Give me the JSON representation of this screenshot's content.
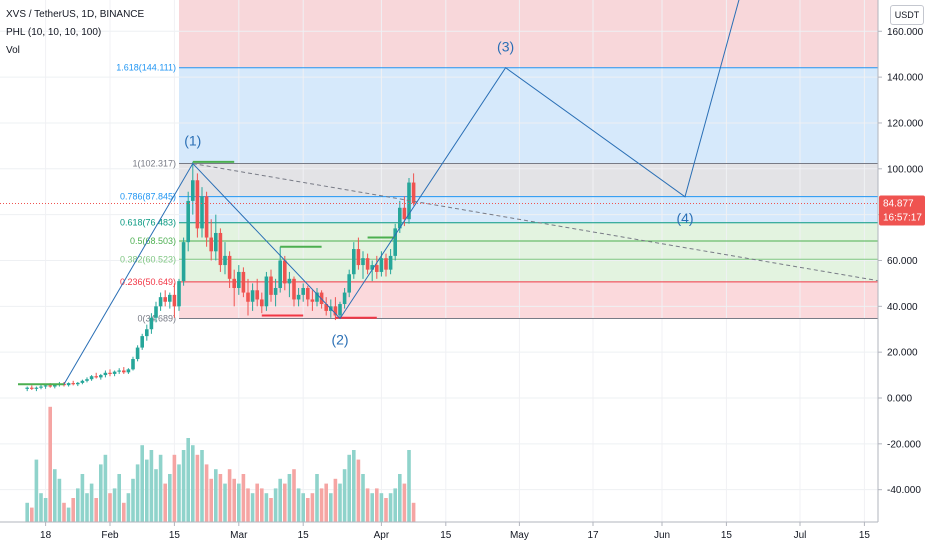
{
  "header": {
    "symbol_line": "XVS / TetherUS, 1D, BINANCE",
    "indicator_line": "PHL (10, 10, 10, 100)",
    "volume_label": "Vol"
  },
  "price_axis": {
    "currency": "USDT",
    "ticks": [
      "160.000",
      "140.000",
      "120.000",
      "100.000",
      "80.000",
      "60.000",
      "40.000",
      "20.000",
      "0.000",
      "-20.000",
      "-40.000"
    ],
    "tick_values": [
      160,
      140,
      120,
      100,
      80,
      60,
      40,
      20,
      0,
      -20,
      -40
    ],
    "current_price": "84.877",
    "countdown": "16:57:17",
    "current_value": 84.877
  },
  "time_axis": {
    "ticks": [
      "18",
      "Feb",
      "15",
      "Mar",
      "15",
      "Apr",
      "15",
      "May",
      "17",
      "Jun",
      "15",
      "Jul",
      "15"
    ],
    "tick_days": [
      -14,
      0,
      14,
      28,
      42,
      59,
      73,
      89,
      105,
      120,
      134,
      150,
      164
    ]
  },
  "fib_levels": [
    {
      "label": "1.618(144.111)",
      "value": 144.111,
      "color": "#2196f3"
    },
    {
      "label": "1(102.317)",
      "value": 102.317,
      "color": "#787b86"
    },
    {
      "label": "0.786(87.845)",
      "value": 87.845,
      "color": "#2196f3"
    },
    {
      "label": "0.618(76.483)",
      "value": 76.483,
      "color": "#089981"
    },
    {
      "label": "0.5(68.503)",
      "value": 68.503,
      "color": "#4caf50"
    },
    {
      "label": "0.382(60.523)",
      "value": 60.523,
      "color": "#81c784"
    },
    {
      "label": "0.236(50.649)",
      "value": 50.649,
      "color": "#f23645"
    },
    {
      "label": "0(34.689)",
      "value": 34.689,
      "color": "#787b86"
    }
  ],
  "wave_labels": [
    "(1)",
    "(2)",
    "(3)",
    "(4)"
  ],
  "chart_data": {
    "type": "candlestick",
    "symbol": "XVS / TetherUS",
    "interval": "1D",
    "exchange": "BINANCE",
    "ylim": [
      -55,
      183
    ],
    "candles": [
      {
        "day": -18,
        "o": 4,
        "h": 5,
        "l": 3,
        "c": 4.5
      },
      {
        "day": -17,
        "o": 4.5,
        "h": 5.5,
        "l": 3.5,
        "c": 4
      },
      {
        "day": -16,
        "o": 4,
        "h": 5,
        "l": 3,
        "c": 4.5
      },
      {
        "day": -15,
        "o": 4.5,
        "h": 6,
        "l": 3.8,
        "c": 5
      },
      {
        "day": -14,
        "o": 5,
        "h": 6,
        "l": 4,
        "c": 5.5
      },
      {
        "day": -13,
        "o": 5.5,
        "h": 6.5,
        "l": 4.5,
        "c": 5
      },
      {
        "day": -12,
        "o": 5,
        "h": 6,
        "l": 4.2,
        "c": 5.8
      },
      {
        "day": -11,
        "o": 5.8,
        "h": 7,
        "l": 5,
        "c": 6.2
      },
      {
        "day": -10,
        "o": 6.2,
        "h": 7,
        "l": 5,
        "c": 5.6
      },
      {
        "day": -9,
        "o": 5.6,
        "h": 6.8,
        "l": 5,
        "c": 6.5
      },
      {
        "day": -8,
        "o": 6.5,
        "h": 7.5,
        "l": 5.5,
        "c": 6
      },
      {
        "day": -7,
        "o": 6,
        "h": 7,
        "l": 5.2,
        "c": 6.6
      },
      {
        "day": -6,
        "o": 6.6,
        "h": 8,
        "l": 6,
        "c": 7.5
      },
      {
        "day": -5,
        "o": 7.5,
        "h": 9,
        "l": 6.8,
        "c": 8.2
      },
      {
        "day": -4,
        "o": 8.2,
        "h": 10,
        "l": 7.5,
        "c": 9.5
      },
      {
        "day": -3,
        "o": 9.5,
        "h": 11,
        "l": 8.5,
        "c": 9
      },
      {
        "day": -2,
        "o": 9,
        "h": 10.5,
        "l": 8,
        "c": 10
      },
      {
        "day": -1,
        "o": 10,
        "h": 12,
        "l": 9,
        "c": 11
      },
      {
        "day": 0,
        "o": 11,
        "h": 12.5,
        "l": 9.5,
        "c": 10.5
      },
      {
        "day": 1,
        "o": 10.5,
        "h": 12,
        "l": 9.5,
        "c": 11.5
      },
      {
        "day": 2,
        "o": 11.5,
        "h": 13,
        "l": 10.5,
        "c": 12
      },
      {
        "day": 3,
        "o": 12,
        "h": 13.5,
        "l": 10.5,
        "c": 11.2
      },
      {
        "day": 4,
        "o": 11.2,
        "h": 13,
        "l": 10.5,
        "c": 12.5
      },
      {
        "day": 5,
        "o": 12.5,
        "h": 18,
        "l": 12,
        "c": 17
      },
      {
        "day": 6,
        "o": 17,
        "h": 23,
        "l": 16,
        "c": 22
      },
      {
        "day": 7,
        "o": 22,
        "h": 28,
        "l": 21,
        "c": 27
      },
      {
        "day": 8,
        "o": 27,
        "h": 32,
        "l": 25,
        "c": 30
      },
      {
        "day": 9,
        "o": 30,
        "h": 37,
        "l": 28,
        "c": 35
      },
      {
        "day": 10,
        "o": 35,
        "h": 42,
        "l": 33,
        "c": 40
      },
      {
        "day": 11,
        "o": 40,
        "h": 46,
        "l": 38,
        "c": 44
      },
      {
        "day": 12,
        "o": 44,
        "h": 47,
        "l": 40,
        "c": 42
      },
      {
        "day": 13,
        "o": 42,
        "h": 46,
        "l": 39,
        "c": 45
      },
      {
        "day": 14,
        "o": 45,
        "h": 50,
        "l": 35,
        "c": 40
      },
      {
        "day": 15,
        "o": 40,
        "h": 52,
        "l": 38,
        "c": 51
      },
      {
        "day": 16,
        "o": 51,
        "h": 70,
        "l": 49,
        "c": 68
      },
      {
        "day": 17,
        "o": 68,
        "h": 90,
        "l": 64,
        "c": 86
      },
      {
        "day": 18,
        "o": 86,
        "h": 103,
        "l": 80,
        "c": 95
      },
      {
        "day": 19,
        "o": 95,
        "h": 98,
        "l": 70,
        "c": 74
      },
      {
        "day": 20,
        "o": 74,
        "h": 92,
        "l": 70,
        "c": 88
      },
      {
        "day": 21,
        "o": 88,
        "h": 90,
        "l": 66,
        "c": 70
      },
      {
        "day": 22,
        "o": 70,
        "h": 78,
        "l": 60,
        "c": 64
      },
      {
        "day": 23,
        "o": 64,
        "h": 80,
        "l": 60,
        "c": 72
      },
      {
        "day": 24,
        "o": 72,
        "h": 74,
        "l": 55,
        "c": 58
      },
      {
        "day": 25,
        "o": 58,
        "h": 68,
        "l": 54,
        "c": 62
      },
      {
        "day": 26,
        "o": 62,
        "h": 64,
        "l": 48,
        "c": 52
      },
      {
        "day": 27,
        "o": 52,
        "h": 56,
        "l": 40,
        "c": 48
      },
      {
        "day": 28,
        "o": 48,
        "h": 58,
        "l": 45,
        "c": 55
      },
      {
        "day": 29,
        "o": 55,
        "h": 57,
        "l": 44,
        "c": 46
      },
      {
        "day": 30,
        "o": 46,
        "h": 52,
        "l": 36,
        "c": 42
      },
      {
        "day": 31,
        "o": 42,
        "h": 50,
        "l": 38,
        "c": 47
      },
      {
        "day": 32,
        "o": 47,
        "h": 52,
        "l": 40,
        "c": 43
      },
      {
        "day": 33,
        "o": 43,
        "h": 46,
        "l": 37,
        "c": 40
      },
      {
        "day": 34,
        "o": 40,
        "h": 55,
        "l": 38,
        "c": 53
      },
      {
        "day": 35,
        "o": 53,
        "h": 56,
        "l": 42,
        "c": 45
      },
      {
        "day": 36,
        "o": 45,
        "h": 52,
        "l": 40,
        "c": 48
      },
      {
        "day": 37,
        "o": 48,
        "h": 66,
        "l": 46,
        "c": 60
      },
      {
        "day": 38,
        "o": 60,
        "h": 62,
        "l": 47,
        "c": 50
      },
      {
        "day": 39,
        "o": 50,
        "h": 55,
        "l": 44,
        "c": 52
      },
      {
        "day": 40,
        "o": 52,
        "h": 53,
        "l": 40,
        "c": 43
      },
      {
        "day": 41,
        "o": 43,
        "h": 48,
        "l": 40,
        "c": 45
      },
      {
        "day": 42,
        "o": 45,
        "h": 50,
        "l": 42,
        "c": 48
      },
      {
        "day": 43,
        "o": 48,
        "h": 49,
        "l": 40,
        "c": 43
      },
      {
        "day": 44,
        "o": 43,
        "h": 47,
        "l": 38,
        "c": 42
      },
      {
        "day": 45,
        "o": 42,
        "h": 48,
        "l": 40,
        "c": 46
      },
      {
        "day": 46,
        "o": 46,
        "h": 47,
        "l": 39,
        "c": 41
      },
      {
        "day": 47,
        "o": 41,
        "h": 44,
        "l": 36,
        "c": 38
      },
      {
        "day": 48,
        "o": 38,
        "h": 43,
        "l": 35,
        "c": 40
      },
      {
        "day": 49,
        "o": 40,
        "h": 44,
        "l": 34,
        "c": 36
      },
      {
        "day": 50,
        "o": 36,
        "h": 42,
        "l": 35,
        "c": 41
      },
      {
        "day": 51,
        "o": 41,
        "h": 48,
        "l": 39,
        "c": 46
      },
      {
        "day": 52,
        "o": 46,
        "h": 56,
        "l": 44,
        "c": 54
      },
      {
        "day": 53,
        "o": 54,
        "h": 68,
        "l": 52,
        "c": 65
      },
      {
        "day": 54,
        "o": 65,
        "h": 70,
        "l": 56,
        "c": 58
      },
      {
        "day": 55,
        "o": 58,
        "h": 64,
        "l": 52,
        "c": 61
      },
      {
        "day": 56,
        "o": 61,
        "h": 63,
        "l": 54,
        "c": 56
      },
      {
        "day": 57,
        "o": 56,
        "h": 60,
        "l": 51,
        "c": 58
      },
      {
        "day": 58,
        "o": 58,
        "h": 62,
        "l": 52,
        "c": 55
      },
      {
        "day": 59,
        "o": 55,
        "h": 64,
        "l": 53,
        "c": 61
      },
      {
        "day": 60,
        "o": 61,
        "h": 63,
        "l": 53,
        "c": 56
      },
      {
        "day": 61,
        "o": 56,
        "h": 65,
        "l": 54,
        "c": 62
      },
      {
        "day": 62,
        "o": 62,
        "h": 76,
        "l": 60,
        "c": 74
      },
      {
        "day": 63,
        "o": 74,
        "h": 86,
        "l": 72,
        "c": 83
      },
      {
        "day": 64,
        "o": 83,
        "h": 88,
        "l": 75,
        "c": 78
      },
      {
        "day": 65,
        "o": 78,
        "h": 96,
        "l": 76,
        "c": 94
      },
      {
        "day": 66,
        "o": 94,
        "h": 98,
        "l": 84,
        "c": 85
      }
    ],
    "volume": [
      {
        "day": -18,
        "v": 8
      },
      {
        "day": -17,
        "v": 6
      },
      {
        "day": -16,
        "v": 26
      },
      {
        "day": -15,
        "v": 12
      },
      {
        "day": -14,
        "v": 10
      },
      {
        "day": -13,
        "v": 48
      },
      {
        "day": -12,
        "v": 22
      },
      {
        "day": -11,
        "v": 18
      },
      {
        "day": -10,
        "v": 8
      },
      {
        "day": -9,
        "v": 6
      },
      {
        "day": -8,
        "v": 10
      },
      {
        "day": -7,
        "v": 14
      },
      {
        "day": -6,
        "v": 20
      },
      {
        "day": -5,
        "v": 12
      },
      {
        "day": -4,
        "v": 16
      },
      {
        "day": -3,
        "v": 10
      },
      {
        "day": -2,
        "v": 24
      },
      {
        "day": -1,
        "v": 28
      },
      {
        "day": 0,
        "v": 12
      },
      {
        "day": 1,
        "v": 14
      },
      {
        "day": 2,
        "v": 20
      },
      {
        "day": 3,
        "v": 8
      },
      {
        "day": 4,
        "v": 12
      },
      {
        "day": 5,
        "v": 18
      },
      {
        "day": 6,
        "v": 24
      },
      {
        "day": 7,
        "v": 32
      },
      {
        "day": 8,
        "v": 26
      },
      {
        "day": 9,
        "v": 30
      },
      {
        "day": 10,
        "v": 22
      },
      {
        "day": 11,
        "v": 28
      },
      {
        "day": 12,
        "v": 16
      },
      {
        "day": 13,
        "v": 20
      },
      {
        "day": 14,
        "v": 28
      },
      {
        "day": 15,
        "v": 24
      },
      {
        "day": 16,
        "v": 30
      },
      {
        "day": 17,
        "v": 35
      },
      {
        "day": 18,
        "v": 32
      },
      {
        "day": 19,
        "v": 28
      },
      {
        "day": 20,
        "v": 30
      },
      {
        "day": 21,
        "v": 24
      },
      {
        "day": 22,
        "v": 18
      },
      {
        "day": 23,
        "v": 22
      },
      {
        "day": 24,
        "v": 20
      },
      {
        "day": 25,
        "v": 16
      },
      {
        "day": 26,
        "v": 22
      },
      {
        "day": 27,
        "v": 18
      },
      {
        "day": 28,
        "v": 16
      },
      {
        "day": 29,
        "v": 20
      },
      {
        "day": 30,
        "v": 14
      },
      {
        "day": 31,
        "v": 12
      },
      {
        "day": 32,
        "v": 16
      },
      {
        "day": 33,
        "v": 14
      },
      {
        "day": 34,
        "v": 12
      },
      {
        "day": 35,
        "v": 10
      },
      {
        "day": 36,
        "v": 14
      },
      {
        "day": 37,
        "v": 18
      },
      {
        "day": 38,
        "v": 16
      },
      {
        "day": 39,
        "v": 20
      },
      {
        "day": 40,
        "v": 22
      },
      {
        "day": 41,
        "v": 14
      },
      {
        "day": 42,
        "v": 12
      },
      {
        "day": 43,
        "v": 10
      },
      {
        "day": 44,
        "v": 12
      },
      {
        "day": 45,
        "v": 20
      },
      {
        "day": 46,
        "v": 14
      },
      {
        "day": 47,
        "v": 16
      },
      {
        "day": 48,
        "v": 12
      },
      {
        "day": 49,
        "v": 18
      },
      {
        "day": 50,
        "v": 16
      },
      {
        "day": 51,
        "v": 22
      },
      {
        "day": 52,
        "v": 28
      },
      {
        "day": 53,
        "v": 30
      },
      {
        "day": 54,
        "v": 26
      },
      {
        "day": 55,
        "v": 20
      },
      {
        "day": 56,
        "v": 14
      },
      {
        "day": 57,
        "v": 12
      },
      {
        "day": 58,
        "v": 14
      },
      {
        "day": 59,
        "v": 12
      },
      {
        "day": 60,
        "v": 10
      },
      {
        "day": 61,
        "v": 12
      },
      {
        "day": 62,
        "v": 14
      },
      {
        "day": 63,
        "v": 20
      },
      {
        "day": 64,
        "v": 16
      },
      {
        "day": 65,
        "v": 30
      },
      {
        "day": 66,
        "v": 8
      }
    ],
    "wave_path": [
      {
        "label": "(1)",
        "day": 18,
        "value": 102.3
      },
      {
        "label": "(2)",
        "day": 50,
        "value": 34.7
      },
      {
        "label": "(3)",
        "day": 86,
        "value": 144.1
      },
      {
        "label": "(4)",
        "day": 125,
        "value": 87.8
      },
      {
        "label": "",
        "day": 138,
        "value": 183
      }
    ],
    "impulse_start": {
      "day": -10,
      "value": 6
    },
    "trendline": {
      "from": {
        "day": 18,
        "value": 102.3
      },
      "to": {
        "day": 185,
        "value": 45
      }
    },
    "fib_range_start_day": 15,
    "colors": {
      "up": "#26a69a",
      "down": "#ef5350",
      "wave": "#2a6fb5",
      "fill_top": "#f8d7da",
      "fill_blue": "#d6e9fb",
      "fill_grey": "#e3e3e6",
      "fill_green": "#e3f3e0",
      "fill_red": "#fbd9dc"
    }
  }
}
